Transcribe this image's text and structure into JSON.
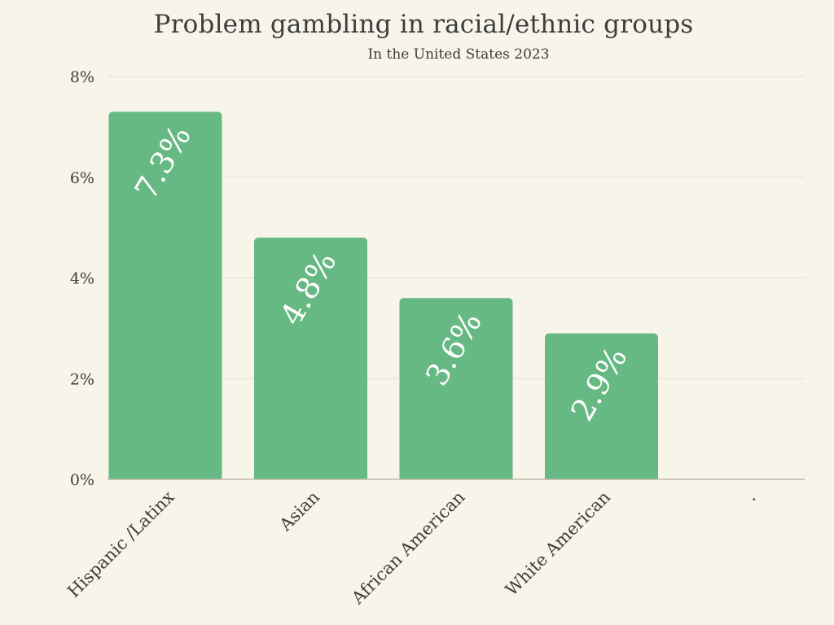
{
  "chart_data": {
    "type": "bar",
    "title": "Problem gambling in racial/ethnic groups",
    "subtitle": "In the United States 2023",
    "categories": [
      "Hispanic /Latinx",
      "Asian",
      "African American",
      "White American",
      "."
    ],
    "values": [
      7.3,
      4.8,
      3.6,
      2.9,
      null
    ],
    "data_labels": [
      "7.3%",
      "4.8%",
      "3.6%",
      "2.9%",
      ""
    ],
    "ylim": [
      0,
      8
    ],
    "yticks": [
      0,
      2,
      4,
      6,
      8
    ],
    "ytick_labels": [
      "0%",
      "2%",
      "4%",
      "6%",
      "8%"
    ],
    "grid": true,
    "colors": {
      "bar": "#66b982",
      "grid": "#e3dfd2",
      "axis": "#bdb8aa",
      "background": "#f7f4ea"
    }
  }
}
